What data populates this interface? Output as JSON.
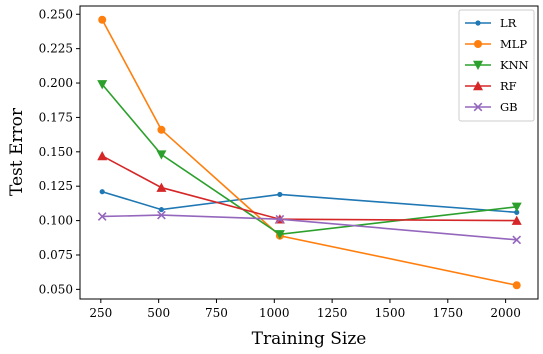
{
  "chart_data": {
    "type": "line",
    "title": "",
    "xlabel": "Training Size",
    "ylabel": "Test Error",
    "xlim": [
      160,
      2140
    ],
    "ylim": [
      0.043,
      0.256
    ],
    "xticks": [
      250,
      500,
      750,
      1000,
      1250,
      1500,
      1750,
      2000
    ],
    "xtick_labels": [
      "250",
      "500",
      "750",
      "1000",
      "1250",
      "1500",
      "1750",
      "2000"
    ],
    "yticks": [
      0.05,
      0.075,
      0.1,
      0.125,
      0.15,
      0.175,
      0.2,
      0.225,
      0.25
    ],
    "ytick_labels": [
      "0.050",
      "0.075",
      "0.100",
      "0.125",
      "0.150",
      "0.175",
      "0.200",
      "0.225",
      "0.250"
    ],
    "grid": false,
    "legend_position": "top-right",
    "x": [
      256,
      512,
      1024,
      2048
    ],
    "series": [
      {
        "name": "LR",
        "values": [
          0.121,
          0.108,
          0.119,
          0.106
        ],
        "color": "#1f77b4",
        "marker": "circle-small"
      },
      {
        "name": "MLP",
        "values": [
          0.246,
          0.166,
          0.089,
          0.053
        ],
        "color": "#ff7f0e",
        "marker": "circle"
      },
      {
        "name": "KNN",
        "values": [
          0.199,
          0.148,
          0.09,
          0.11
        ],
        "color": "#2ca02c",
        "marker": "triangle-down"
      },
      {
        "name": "RF",
        "values": [
          0.147,
          0.124,
          0.101,
          0.1
        ],
        "color": "#d62728",
        "marker": "triangle-up"
      },
      {
        "name": "GB",
        "values": [
          0.103,
          0.104,
          0.101,
          0.086
        ],
        "color": "#9467bd",
        "marker": "x"
      }
    ]
  }
}
